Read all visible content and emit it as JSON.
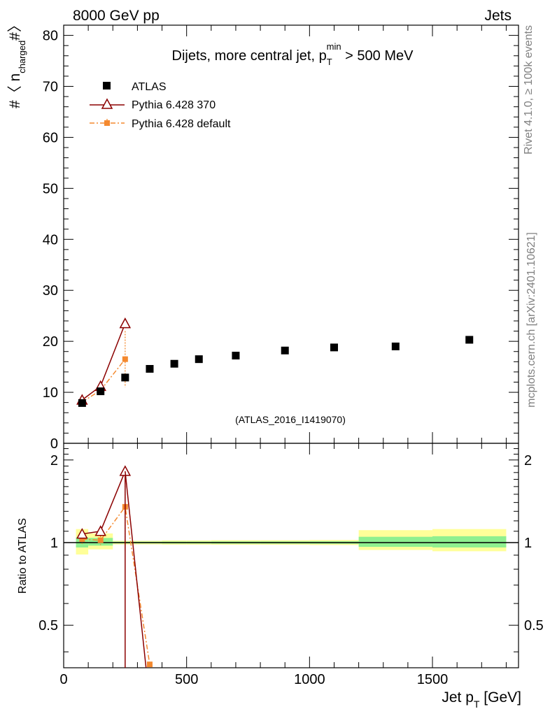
{
  "header": {
    "energy": "8000 GeV pp",
    "category": "Jets"
  },
  "side": {
    "rivet": "Rivet 4.1.0, ≥ 100k events",
    "source": "mcplots.cern.ch [arXiv:2401.10621]"
  },
  "chart_data": [
    {
      "type": "scatter",
      "panel": "main",
      "title": "Dijets, more central jet, p",
      "title_sup": "min",
      "title_sub": "T",
      "title_tail": " > 500 MeV",
      "ylabel": "#〈 n",
      "ylabel_sub": "charged",
      "ylabel_tail": "#〉",
      "analysis": "(ATLAS_2016_I1419070)",
      "xlim": [
        0,
        1850
      ],
      "ylim": [
        0,
        82
      ],
      "yticks": [
        "0",
        "10",
        "20",
        "30",
        "40",
        "50",
        "60",
        "70",
        "80"
      ],
      "ytick_values": [
        0,
        10,
        20,
        30,
        40,
        50,
        60,
        70,
        80
      ],
      "series": [
        {
          "name": "ATLAS",
          "style": "data",
          "color": "#000000",
          "x": [
            75,
            150,
            250,
            350,
            450,
            550,
            700,
            900,
            1100,
            1350,
            1650
          ],
          "values": [
            7.9,
            10.2,
            12.9,
            14.6,
            15.6,
            16.5,
            17.2,
            18.2,
            18.8,
            19.0,
            20.3
          ]
        },
        {
          "name": "Pythia 6.428 370",
          "style": "triangle",
          "color": "#8b0000",
          "x": [
            75,
            150,
            250
          ],
          "values": [
            8.5,
            11.2,
            23.5
          ]
        },
        {
          "name": "Pythia 6.428 default",
          "style": "square-dashdot",
          "color": "#f4892f",
          "x": [
            75,
            150,
            250
          ],
          "values": [
            8.1,
            10.4,
            16.5
          ],
          "errors": [
            0.3,
            0.4,
            5.5
          ]
        }
      ]
    },
    {
      "type": "line",
      "panel": "ratio",
      "ylabel": "Ratio to ATLAS",
      "xlabel": "Jet p",
      "xlabel_sub": "T",
      "xlabel_tail": " [GeV]",
      "xlim": [
        0,
        1850
      ],
      "ylim": [
        0.35,
        2.3
      ],
      "xticks": [
        "0",
        "500",
        "1000",
        "1500"
      ],
      "xtick_values": [
        0,
        500,
        1000,
        1500
      ],
      "yticks": [
        "0.5",
        "1",
        "2"
      ],
      "ytick_values": [
        0.5,
        1,
        2
      ],
      "bands": [
        {
          "x": [
            50,
            100
          ],
          "yellow": [
            0.905,
            1.12
          ],
          "green": [
            0.96,
            1.045
          ]
        },
        {
          "x": [
            100,
            200
          ],
          "yellow": [
            0.945,
            1.08
          ],
          "green": [
            0.975,
            1.04
          ]
        },
        {
          "x": [
            200,
            300
          ],
          "yellow": [
            0.985,
            1.015
          ],
          "green": [
            0.993,
            1.008
          ]
        },
        {
          "x": [
            300,
            400
          ],
          "yellow": [
            0.985,
            1.015
          ],
          "green": [
            0.993,
            1.008
          ]
        },
        {
          "x": [
            400,
            500
          ],
          "yellow": [
            0.983,
            1.018
          ],
          "green": [
            0.992,
            1.009
          ]
        },
        {
          "x": [
            500,
            600
          ],
          "yellow": [
            0.983,
            1.018
          ],
          "green": [
            0.992,
            1.009
          ]
        },
        {
          "x": [
            600,
            800
          ],
          "yellow": [
            0.982,
            1.02
          ],
          "green": [
            0.991,
            1.01
          ]
        },
        {
          "x": [
            800,
            1000
          ],
          "yellow": [
            0.982,
            1.02
          ],
          "green": [
            0.991,
            1.01
          ]
        },
        {
          "x": [
            1000,
            1200
          ],
          "yellow": [
            0.98,
            1.022
          ],
          "green": [
            0.99,
            1.011
          ]
        },
        {
          "x": [
            1200,
            1500
          ],
          "yellow": [
            0.94,
            1.11
          ],
          "green": [
            0.965,
            1.05
          ]
        },
        {
          "x": [
            1500,
            1800
          ],
          "yellow": [
            0.93,
            1.12
          ],
          "green": [
            0.96,
            1.055
          ]
        }
      ],
      "series": [
        {
          "name": "Pythia 6.428 370",
          "style": "triangle",
          "color": "#8b0000",
          "x": [
            75,
            150,
            250
          ],
          "values": [
            1.075,
            1.1,
            1.82
          ],
          "drop_to": 0.3
        },
        {
          "name": "Pythia 6.428 default",
          "style": "square-dashdot",
          "color": "#f4892f",
          "x": [
            75,
            150,
            250,
            350
          ],
          "values": [
            1.03,
            1.02,
            1.35,
            0.36
          ],
          "errors": [
            0.04,
            0.04,
            0.42,
            0
          ]
        }
      ]
    }
  ]
}
